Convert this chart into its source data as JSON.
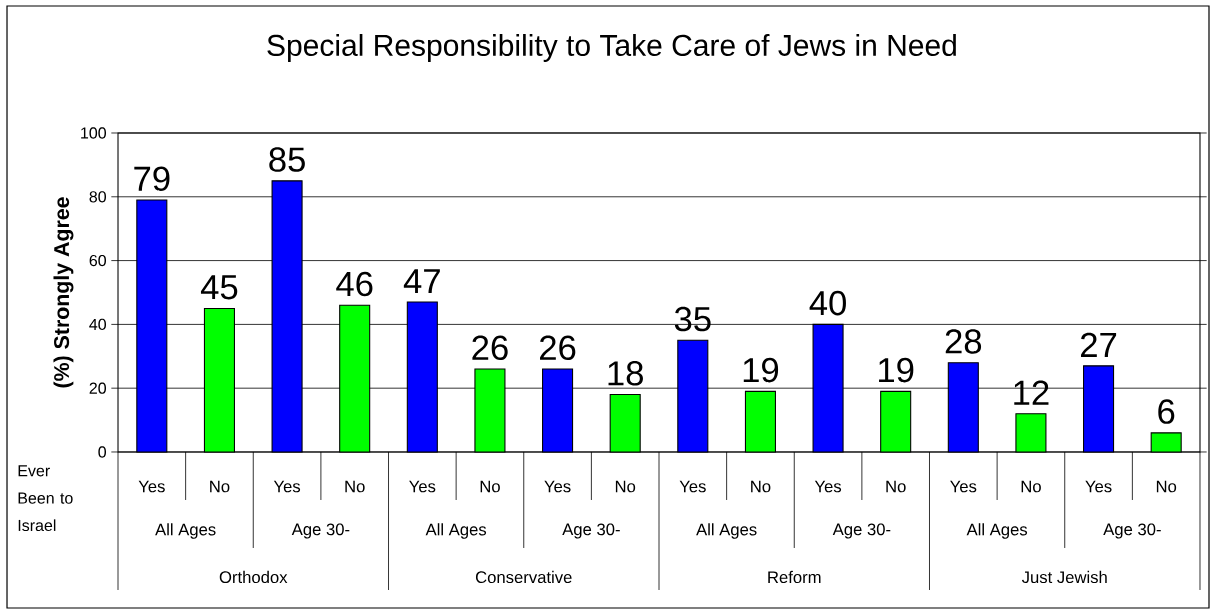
{
  "chart_data": {
    "type": "bar",
    "title": "Special Responsibility to Take Care of Jews in Need",
    "ylabel": "(%) Strongly Agree",
    "xlabel": "Ever Been to Israel",
    "categories": [
      "Yes",
      "No",
      "Yes",
      "No",
      "Yes",
      "No",
      "Yes",
      "No",
      "Yes",
      "No",
      "Yes",
      "No",
      "Yes",
      "No",
      "Yes",
      "No"
    ],
    "values": [
      79,
      45,
      85,
      46,
      47,
      26,
      26,
      18,
      35,
      19,
      40,
      19,
      28,
      12,
      27,
      6
    ],
    "colors": [
      "#0000ff",
      "#00ff00",
      "#0000ff",
      "#00ff00",
      "#0000ff",
      "#00ff00",
      "#0000ff",
      "#00ff00",
      "#0000ff",
      "#00ff00",
      "#0000ff",
      "#00ff00",
      "#0000ff",
      "#00ff00",
      "#0000ff",
      "#00ff00"
    ],
    "annotations": [
      "All Ages",
      "Age 30-",
      "All Ages",
      "Age 30-",
      "All Ages",
      "Age 30-",
      "All Ages",
      "Age 30-",
      "Orthodox",
      "Conservative",
      "Reform",
      "Just Jewish"
    ],
    "ylim": [
      0,
      100
    ],
    "yticks": [
      0,
      20,
      40,
      60,
      80,
      100
    ],
    "grid": "y",
    "data_labels": true
  }
}
